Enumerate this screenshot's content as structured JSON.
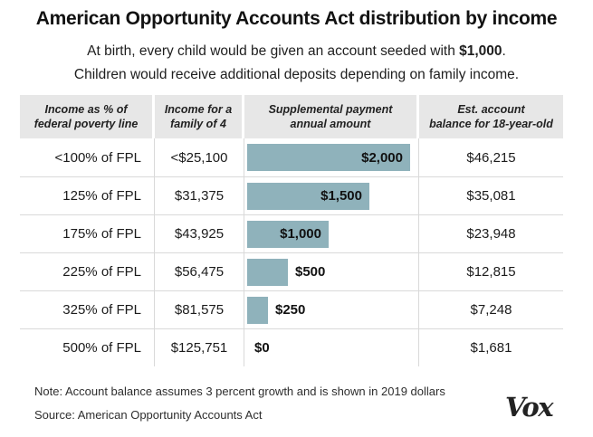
{
  "colors": {
    "bar": "#8fb2bb",
    "header_bg": "#e7e7e7",
    "grid_line": "#d9d9d9"
  },
  "header": {
    "title": "American Opportunity Accounts Act distribution by income",
    "subtitle_line1_prefix": "At birth, every child would be given an account seeded with ",
    "subtitle_line1_bold": "$1,000",
    "subtitle_line1_suffix": ".",
    "subtitle_line2": "Children would receive additional deposits depending on family income."
  },
  "table": {
    "columns": [
      {
        "label": "Income as % of\nfederal poverty line"
      },
      {
        "label": "Income for a\nfamily of 4"
      },
      {
        "label": "Supplemental payment\nannual amount"
      },
      {
        "label": "Est. account\nbalance for 18-year-old"
      }
    ],
    "rows": [
      {
        "fpl": "<100% of FPL",
        "income": "<$25,100",
        "payment": 2000,
        "payment_label": "$2,000",
        "balance": "$46,215"
      },
      {
        "fpl": "125% of FPL",
        "income": "$31,375",
        "payment": 1500,
        "payment_label": "$1,500",
        "balance": "$35,081"
      },
      {
        "fpl": "175% of FPL",
        "income": "$43,925",
        "payment": 1000,
        "payment_label": "$1,000",
        "balance": "$23,948"
      },
      {
        "fpl": "225% of FPL",
        "income": "$56,475",
        "payment": 500,
        "payment_label": "$500",
        "balance": "$12,815"
      },
      {
        "fpl": "325% of FPL",
        "income": "$81,575",
        "payment": 250,
        "payment_label": "$250",
        "balance": "$7,248"
      },
      {
        "fpl": "500% of FPL",
        "income": "$125,751",
        "payment": 0,
        "payment_label": "$0",
        "balance": "$1,681"
      }
    ]
  },
  "footer": {
    "note": "Note: Account balance assumes 3 percent growth and is shown in 2019 dollars",
    "source": "Source: American Opportunity Accounts Act",
    "logo": "Vox"
  },
  "chart_data": {
    "type": "bar",
    "title": "American Opportunity Accounts Act distribution by income",
    "subtitle": "At birth, every child would be given an account seeded with $1,000. Children would receive additional deposits depending on family income.",
    "categories": [
      "<100% of FPL",
      "125% of FPL",
      "175% of FPL",
      "225% of FPL",
      "325% of FPL",
      "500% of FPL"
    ],
    "series": [
      {
        "name": "Income for a family of 4",
        "values_text": [
          "<$25,100",
          "$31,375",
          "$43,925",
          "$56,475",
          "$81,575",
          "$125,751"
        ]
      },
      {
        "name": "Supplemental payment annual amount",
        "values": [
          2000,
          1500,
          1000,
          500,
          250,
          0
        ]
      },
      {
        "name": "Est. account balance for 18-year-old",
        "values": [
          46215,
          35081,
          23948,
          12815,
          7248,
          1681
        ]
      }
    ],
    "bar_series": "Supplemental payment annual amount",
    "xlim": [
      0,
      2100
    ],
    "orientation": "horizontal",
    "grid": false,
    "legend": "none",
    "note": "Note: Account balance assumes 3 percent growth and is shown in 2019 dollars",
    "source": "Source: American Opportunity Accounts Act"
  }
}
